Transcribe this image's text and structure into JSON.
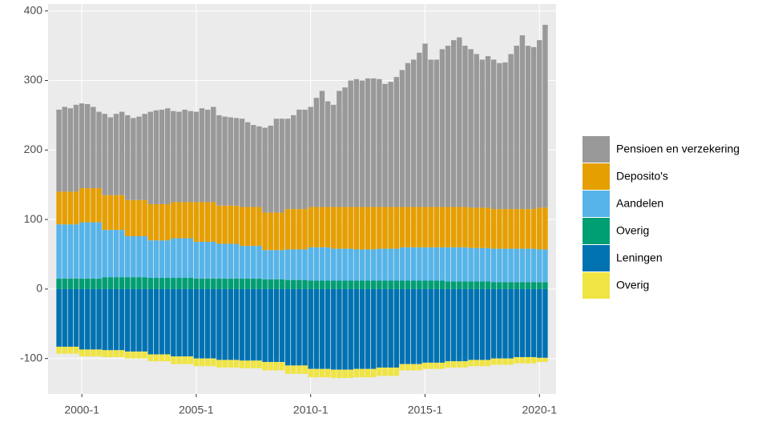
{
  "chart_data": {
    "type": "stacked_bar",
    "categories": [
      null,
      null,
      null,
      null,
      "2000-1",
      null,
      null,
      null,
      null,
      null,
      null,
      null,
      null,
      null,
      null,
      null,
      null,
      null,
      null,
      null,
      null,
      null,
      null,
      null,
      "2005-1",
      null,
      null,
      null,
      null,
      null,
      null,
      null,
      null,
      null,
      null,
      null,
      null,
      null,
      null,
      null,
      null,
      null,
      null,
      null,
      "2010-1",
      null,
      null,
      null,
      null,
      null,
      null,
      null,
      null,
      null,
      null,
      null,
      null,
      null,
      null,
      null,
      null,
      null,
      null,
      null,
      "2015-1",
      null,
      null,
      null,
      null,
      null,
      null,
      null,
      null,
      null,
      null,
      null,
      null,
      null,
      null,
      null,
      null,
      null,
      null,
      null,
      "2020-1",
      null
    ],
    "series": [
      {
        "name": "Pensioen en verzekering",
        "color": "#999999",
        "values": [
          118,
          122,
          120,
          125,
          122,
          121,
          117,
          110,
          117,
          112,
          117,
          120,
          122,
          118,
          120,
          124,
          133,
          135,
          136,
          138,
          131,
          130,
          133,
          131,
          130,
          135,
          133,
          137,
          130,
          128,
          127,
          126,
          127,
          122,
          118,
          116,
          122,
          125,
          135,
          135,
          130,
          135,
          143,
          143,
          144,
          157,
          167,
          152,
          147,
          167,
          172,
          182,
          184,
          182,
          185,
          185,
          184,
          177,
          180,
          187,
          197,
          207,
          212,
          222,
          235,
          212,
          212,
          227,
          232,
          240,
          244,
          232,
          228,
          221,
          213,
          218,
          215,
          210,
          211,
          223,
          235,
          250,
          235,
          233,
          241,
          263
        ]
      },
      {
        "name": "Deposito's",
        "color": "#E69F00",
        "values": [
          47,
          47,
          47,
          47,
          49,
          49,
          49,
          49,
          50,
          50,
          50,
          50,
          52,
          52,
          52,
          52,
          52,
          52,
          52,
          52,
          52,
          52,
          52,
          52,
          57,
          57,
          57,
          57,
          55,
          55,
          55,
          55,
          56,
          56,
          56,
          56,
          54,
          54,
          54,
          54,
          58,
          58,
          58,
          58,
          58,
          58,
          58,
          58,
          60,
          60,
          60,
          60,
          61,
          61,
          61,
          61,
          60,
          60,
          60,
          60,
          58,
          58,
          58,
          58,
          58,
          58,
          58,
          58,
          58,
          58,
          58,
          58,
          58,
          58,
          58,
          58,
          57,
          57,
          57,
          57,
          57,
          57,
          57,
          57,
          60,
          60
        ]
      },
      {
        "name": "Aandelen",
        "color": "#56B4E9",
        "values": [
          78,
          78,
          78,
          78,
          81,
          81,
          81,
          81,
          68,
          68,
          68,
          68,
          59,
          59,
          59,
          59,
          54,
          54,
          54,
          54,
          57,
          57,
          57,
          57,
          53,
          53,
          53,
          53,
          50,
          50,
          50,
          50,
          47,
          47,
          47,
          47,
          42,
          42,
          42,
          42,
          44,
          44,
          44,
          44,
          48,
          48,
          48,
          48,
          46,
          46,
          46,
          46,
          45,
          45,
          45,
          45,
          46,
          46,
          46,
          46,
          48,
          48,
          48,
          48,
          48,
          48,
          48,
          48,
          49,
          49,
          49,
          49,
          48,
          48,
          48,
          48,
          48,
          48,
          48,
          48,
          48,
          48,
          48,
          48,
          47,
          47
        ]
      },
      {
        "name": "Overig",
        "color": "#009E73",
        "values": [
          15,
          15,
          15,
          15,
          15,
          15,
          15,
          15,
          17,
          17,
          17,
          17,
          17,
          17,
          17,
          17,
          16,
          16,
          16,
          16,
          16,
          16,
          16,
          16,
          15,
          15,
          15,
          15,
          15,
          15,
          15,
          15,
          15,
          15,
          15,
          15,
          14,
          14,
          14,
          14,
          13,
          13,
          13,
          13,
          12,
          12,
          12,
          12,
          12,
          12,
          12,
          12,
          12,
          12,
          12,
          12,
          12,
          12,
          12,
          12,
          12,
          12,
          12,
          12,
          12,
          12,
          12,
          12,
          11,
          11,
          11,
          11,
          11,
          11,
          11,
          11,
          10,
          10,
          10,
          10,
          10,
          10,
          10,
          10,
          10,
          10
        ]
      },
      {
        "name": "Leningen",
        "color": "#0072B2",
        "values": [
          -83,
          -83,
          -83,
          -83,
          -87,
          -87,
          -87,
          -87,
          -88,
          -88,
          -88,
          -88,
          -90,
          -90,
          -90,
          -90,
          -94,
          -94,
          -94,
          -94,
          -97,
          -97,
          -97,
          -97,
          -100,
          -100,
          -100,
          -100,
          -102,
          -102,
          -102,
          -102,
          -103,
          -103,
          -103,
          -103,
          -105,
          -105,
          -105,
          -105,
          -110,
          -110,
          -110,
          -110,
          -115,
          -115,
          -115,
          -115,
          -116,
          -116,
          -116,
          -116,
          -115,
          -115,
          -115,
          -115,
          -113,
          -113,
          -113,
          -113,
          -108,
          -108,
          -108,
          -108,
          -106,
          -106,
          -106,
          -106,
          -104,
          -104,
          -104,
          -104,
          -102,
          -102,
          -102,
          -102,
          -100,
          -100,
          -100,
          -100,
          -98,
          -98,
          -98,
          -98,
          -99,
          -99
        ]
      },
      {
        "name": "Overig",
        "color": "#F0E442",
        "values": [
          -10,
          -10,
          -10,
          -10,
          -10,
          -10,
          -10,
          -10,
          -10,
          -10,
          -10,
          -10,
          -10,
          -10,
          -10,
          -10,
          -10,
          -10,
          -10,
          -10,
          -11,
          -11,
          -11,
          -11,
          -11,
          -11,
          -11,
          -11,
          -11,
          -11,
          -11,
          -11,
          -11,
          -11,
          -11,
          -11,
          -12,
          -12,
          -12,
          -12,
          -12,
          -12,
          -12,
          -12,
          -12,
          -12,
          -12,
          -12,
          -12,
          -12,
          -12,
          -12,
          -12,
          -12,
          -12,
          -12,
          -12,
          -12,
          -12,
          -12,
          -9,
          -9,
          -9,
          -9,
          -9,
          -9,
          -9,
          -9,
          -9,
          -9,
          -9,
          -9,
          -9,
          -9,
          -9,
          -9,
          -9,
          -9,
          -9,
          -9,
          -9,
          -9,
          -9,
          -9,
          -6,
          -6
        ]
      }
    ],
    "ylim": [
      -151,
      410
    ],
    "yticks": [
      -100,
      0,
      100,
      200,
      300,
      400
    ],
    "grid": true
  }
}
